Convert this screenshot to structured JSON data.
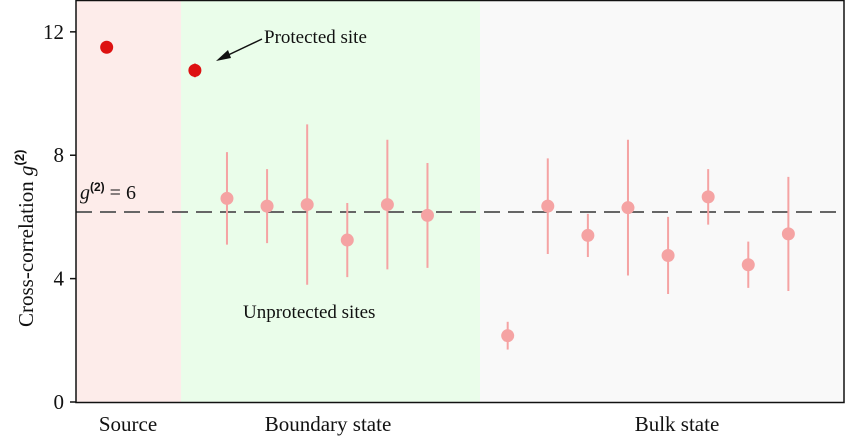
{
  "chart_data": {
    "type": "scatter",
    "ylabel_text": "Cross-correlation ",
    "ylabel_sym": "g",
    "ylabel_sup": "(2)",
    "ylim": [
      0,
      13
    ],
    "yticks": [
      0,
      4,
      8,
      12
    ],
    "regions": [
      {
        "label": "Source",
        "color": "#fdecea"
      },
      {
        "label": "Boundary state",
        "color": "#eafdea"
      },
      {
        "label": "Bulk state",
        "color": "#f9f9f9"
      }
    ],
    "reference_line": {
      "value": 6,
      "label_sym": "g",
      "label_sup": "(2)",
      "label_rest": " = 6",
      "color": "#666666"
    },
    "annotations": {
      "protected": "Protected site",
      "unprotected": "Unprotected sites"
    },
    "series": [
      {
        "color": "#dd1111",
        "points": [
          {
            "x": 1,
            "y": 11.5,
            "err": 0.1
          },
          {
            "x": 3.2,
            "y": 10.75,
            "err": 0.22
          }
        ]
      },
      {
        "color": "#f5a3a3",
        "points": [
          {
            "x": 4,
            "y": 6.6,
            "err": 1.5
          },
          {
            "x": 5,
            "y": 6.35,
            "err": 1.2
          },
          {
            "x": 6,
            "y": 6.4,
            "err": 2.6
          },
          {
            "x": 7,
            "y": 5.25,
            "err": 1.2
          },
          {
            "x": 8,
            "y": 6.4,
            "err": 2.1
          },
          {
            "x": 9,
            "y": 6.05,
            "err": 1.7
          },
          {
            "x": 11,
            "y": 2.15,
            "err": 0.45
          },
          {
            "x": 12,
            "y": 6.35,
            "err": 1.55
          },
          {
            "x": 13,
            "y": 5.4,
            "err": 0.7
          },
          {
            "x": 14,
            "y": 6.3,
            "err": 2.2
          },
          {
            "x": 15,
            "y": 4.75,
            "err": 1.25
          },
          {
            "x": 16,
            "y": 6.65,
            "err": 0.9
          },
          {
            "x": 17,
            "y": 4.45,
            "err": 0.75
          },
          {
            "x": 18,
            "y": 5.45,
            "err": 1.85
          }
        ]
      }
    ]
  }
}
